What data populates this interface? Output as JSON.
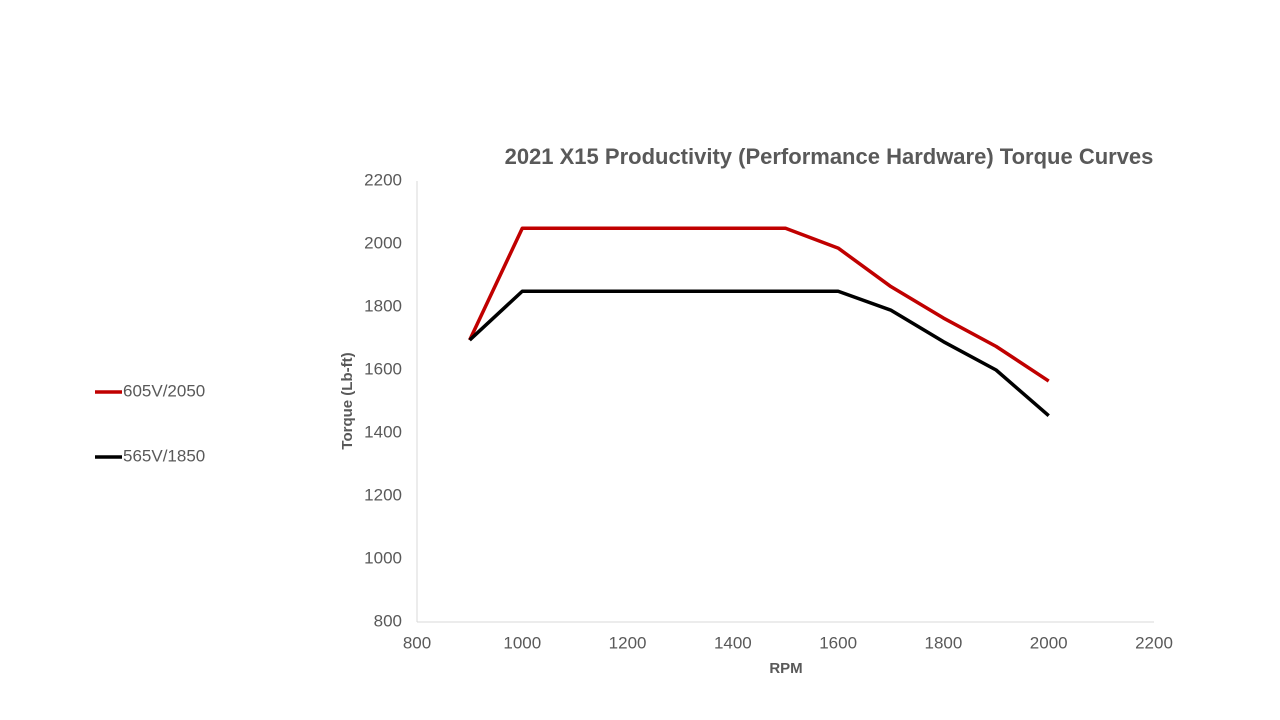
{
  "chart_data": {
    "type": "line",
    "title": "2021 X15 Productivity (Performance Hardware) Torque Curves",
    "xlabel": "RPM",
    "ylabel": "Torque (Lb-ft)",
    "xlim": [
      800,
      2200
    ],
    "xticks": [
      800,
      1000,
      1200,
      1400,
      1600,
      1800,
      2000,
      2200
    ],
    "ylim": [
      800,
      2200
    ],
    "yticks": [
      800,
      1000,
      1200,
      1400,
      1600,
      1800,
      2000,
      2200
    ],
    "grid": false,
    "legend": "left",
    "series": [
      {
        "name": "605V/2050",
        "color": "#c00000",
        "x": [
          900,
          1000,
          1500,
          1600,
          1700,
          1800,
          1900,
          2000
        ],
        "values": [
          1695,
          2050,
          2050,
          1987,
          1865,
          1765,
          1675,
          1565
        ]
      },
      {
        "name": "565V/1850",
        "color": "#000000",
        "x": [
          900,
          1000,
          1600,
          1700,
          1800,
          1900,
          2000
        ],
        "values": [
          1695,
          1850,
          1850,
          1790,
          1690,
          1600,
          1455
        ]
      }
    ]
  }
}
